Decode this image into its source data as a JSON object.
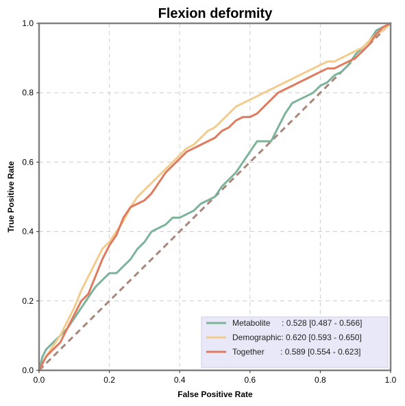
{
  "chart_data": {
    "type": "line",
    "title": "Flexion deformity",
    "xlabel": "False Positive Rate",
    "ylabel": "True Positive Rate",
    "xlim": [
      0,
      1
    ],
    "ylim": [
      0,
      1
    ],
    "xticks": [
      "0.0",
      "0.2",
      "0.4",
      "0.6",
      "0.8",
      "1.0"
    ],
    "yticks": [
      "0.0",
      "0.2",
      "0.4",
      "0.6",
      "0.8",
      "1.0"
    ],
    "grid": true,
    "legend_position": "lower-right",
    "diagonal": {
      "color": "#a8877a",
      "style": "dashed"
    },
    "series": [
      {
        "name": "Metabolite",
        "label": "Metabolite     : 0.528 [0.487 - 0.566]",
        "color": "#7db39a",
        "x": [
          0,
          0.01,
          0.02,
          0.04,
          0.06,
          0.08,
          0.1,
          0.12,
          0.14,
          0.16,
          0.18,
          0.2,
          0.22,
          0.24,
          0.26,
          0.28,
          0.3,
          0.32,
          0.34,
          0.36,
          0.38,
          0.4,
          0.42,
          0.44,
          0.46,
          0.48,
          0.5,
          0.52,
          0.54,
          0.56,
          0.58,
          0.6,
          0.62,
          0.64,
          0.66,
          0.68,
          0.7,
          0.72,
          0.74,
          0.76,
          0.78,
          0.8,
          0.82,
          0.84,
          0.86,
          0.88,
          0.9,
          0.92,
          0.94,
          0.96,
          0.98,
          1.0
        ],
        "y": [
          0,
          0.04,
          0.06,
          0.08,
          0.1,
          0.12,
          0.15,
          0.18,
          0.21,
          0.24,
          0.26,
          0.28,
          0.28,
          0.3,
          0.32,
          0.35,
          0.37,
          0.4,
          0.41,
          0.42,
          0.44,
          0.44,
          0.45,
          0.46,
          0.48,
          0.49,
          0.5,
          0.53,
          0.55,
          0.57,
          0.6,
          0.63,
          0.66,
          0.66,
          0.66,
          0.7,
          0.74,
          0.77,
          0.78,
          0.79,
          0.8,
          0.82,
          0.83,
          0.85,
          0.86,
          0.88,
          0.91,
          0.93,
          0.95,
          0.98,
          0.99,
          1.0
        ]
      },
      {
        "name": "Demographic",
        "label": "Demographic: 0.620 [0.593 - 0.650]",
        "color": "#f2cb8d",
        "x": [
          0,
          0.02,
          0.04,
          0.06,
          0.08,
          0.1,
          0.12,
          0.14,
          0.16,
          0.18,
          0.2,
          0.22,
          0.24,
          0.26,
          0.28,
          0.3,
          0.32,
          0.34,
          0.36,
          0.38,
          0.4,
          0.42,
          0.44,
          0.46,
          0.48,
          0.5,
          0.52,
          0.54,
          0.56,
          0.58,
          0.6,
          0.62,
          0.64,
          0.66,
          0.68,
          0.7,
          0.72,
          0.74,
          0.76,
          0.78,
          0.8,
          0.82,
          0.84,
          0.86,
          0.88,
          0.9,
          0.92,
          0.94,
          0.96,
          0.98,
          1.0
        ],
        "y": [
          0,
          0.04,
          0.07,
          0.1,
          0.14,
          0.18,
          0.23,
          0.27,
          0.31,
          0.35,
          0.37,
          0.4,
          0.43,
          0.47,
          0.5,
          0.52,
          0.54,
          0.56,
          0.58,
          0.6,
          0.62,
          0.64,
          0.65,
          0.67,
          0.69,
          0.7,
          0.72,
          0.74,
          0.76,
          0.77,
          0.78,
          0.79,
          0.8,
          0.81,
          0.82,
          0.83,
          0.84,
          0.85,
          0.86,
          0.87,
          0.88,
          0.89,
          0.89,
          0.9,
          0.91,
          0.92,
          0.93,
          0.95,
          0.97,
          0.98,
          1.0
        ]
      },
      {
        "name": "Together",
        "label": "Together       : 0.589 [0.554 - 0.623]",
        "color": "#e07a5f",
        "x": [
          0,
          0.02,
          0.04,
          0.06,
          0.08,
          0.1,
          0.12,
          0.14,
          0.16,
          0.18,
          0.2,
          0.22,
          0.24,
          0.26,
          0.28,
          0.3,
          0.32,
          0.34,
          0.36,
          0.38,
          0.4,
          0.42,
          0.44,
          0.46,
          0.48,
          0.5,
          0.52,
          0.54,
          0.56,
          0.58,
          0.6,
          0.62,
          0.64,
          0.66,
          0.68,
          0.7,
          0.72,
          0.74,
          0.76,
          0.78,
          0.8,
          0.82,
          0.84,
          0.86,
          0.88,
          0.9,
          0.92,
          0.94,
          0.96,
          0.98,
          1.0
        ],
        "y": [
          0,
          0.04,
          0.06,
          0.08,
          0.12,
          0.16,
          0.2,
          0.22,
          0.27,
          0.32,
          0.36,
          0.39,
          0.44,
          0.47,
          0.48,
          0.49,
          0.51,
          0.54,
          0.57,
          0.59,
          0.61,
          0.63,
          0.64,
          0.65,
          0.66,
          0.67,
          0.69,
          0.7,
          0.72,
          0.73,
          0.73,
          0.74,
          0.76,
          0.78,
          0.8,
          0.81,
          0.82,
          0.83,
          0.84,
          0.85,
          0.86,
          0.87,
          0.87,
          0.88,
          0.89,
          0.9,
          0.92,
          0.94,
          0.97,
          0.99,
          1.0
        ]
      }
    ]
  }
}
